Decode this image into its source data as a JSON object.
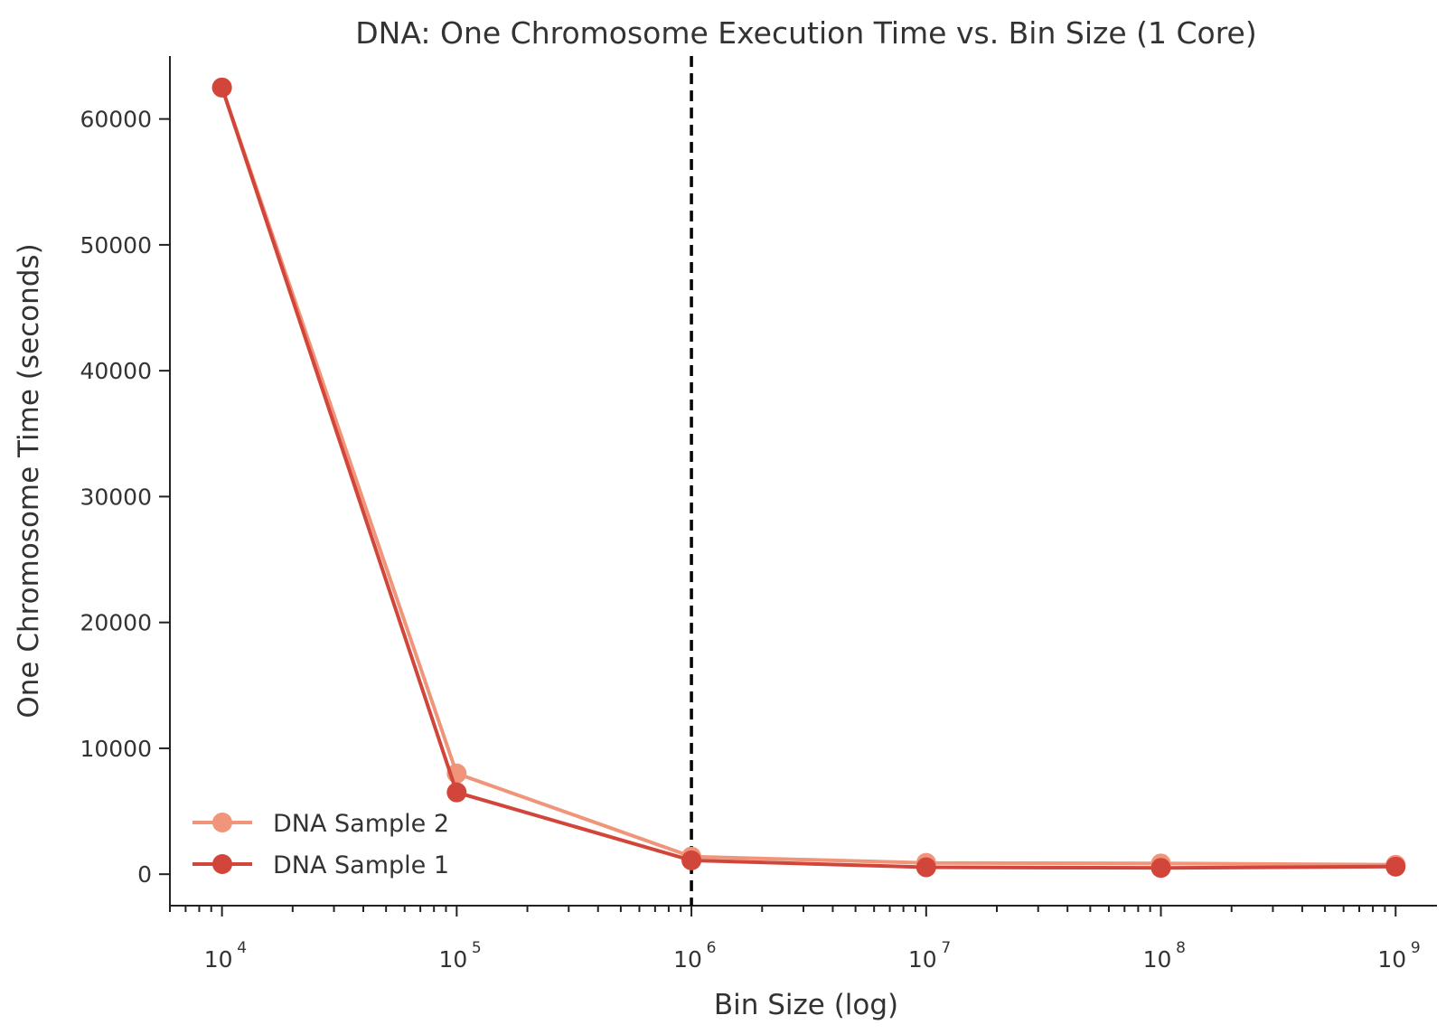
{
  "chart_data": {
    "type": "line",
    "title": "DNA: One Chromosome Execution Time vs. Bin Size (1 Core)",
    "xlabel": "Bin Size (log)",
    "ylabel": "One Chromosome Time (seconds)",
    "xscale": "log",
    "xlim": [
      6000,
      1500000000
    ],
    "ylim": [
      -2500,
      65000
    ],
    "x_ticks": [
      {
        "base": "10",
        "exp": "4",
        "value": 10000
      },
      {
        "base": "10",
        "exp": "5",
        "value": 100000
      },
      {
        "base": "10",
        "exp": "6",
        "value": 1000000
      },
      {
        "base": "10",
        "exp": "7",
        "value": 10000000
      },
      {
        "base": "10",
        "exp": "8",
        "value": 100000000
      },
      {
        "base": "10",
        "exp": "9",
        "value": 1000000000
      }
    ],
    "y_ticks": [
      0,
      10000,
      20000,
      30000,
      40000,
      50000,
      60000
    ],
    "vline": {
      "x": 1000000,
      "style": "dashed",
      "color": "#000000"
    },
    "legend_position": "lower-left",
    "grid": false,
    "series": [
      {
        "name": "DNA Sample 2",
        "color": "#F0957A",
        "x": [
          10000,
          100000,
          1000000,
          10000000,
          100000000,
          1000000000
        ],
        "y": [
          62500,
          8000,
          1400,
          900,
          850,
          750
        ]
      },
      {
        "name": "DNA Sample 1",
        "color": "#D2453A",
        "x": [
          10000,
          100000,
          1000000,
          10000000,
          100000000,
          1000000000
        ],
        "y": [
          62500,
          6500,
          1100,
          550,
          500,
          600
        ]
      }
    ]
  }
}
